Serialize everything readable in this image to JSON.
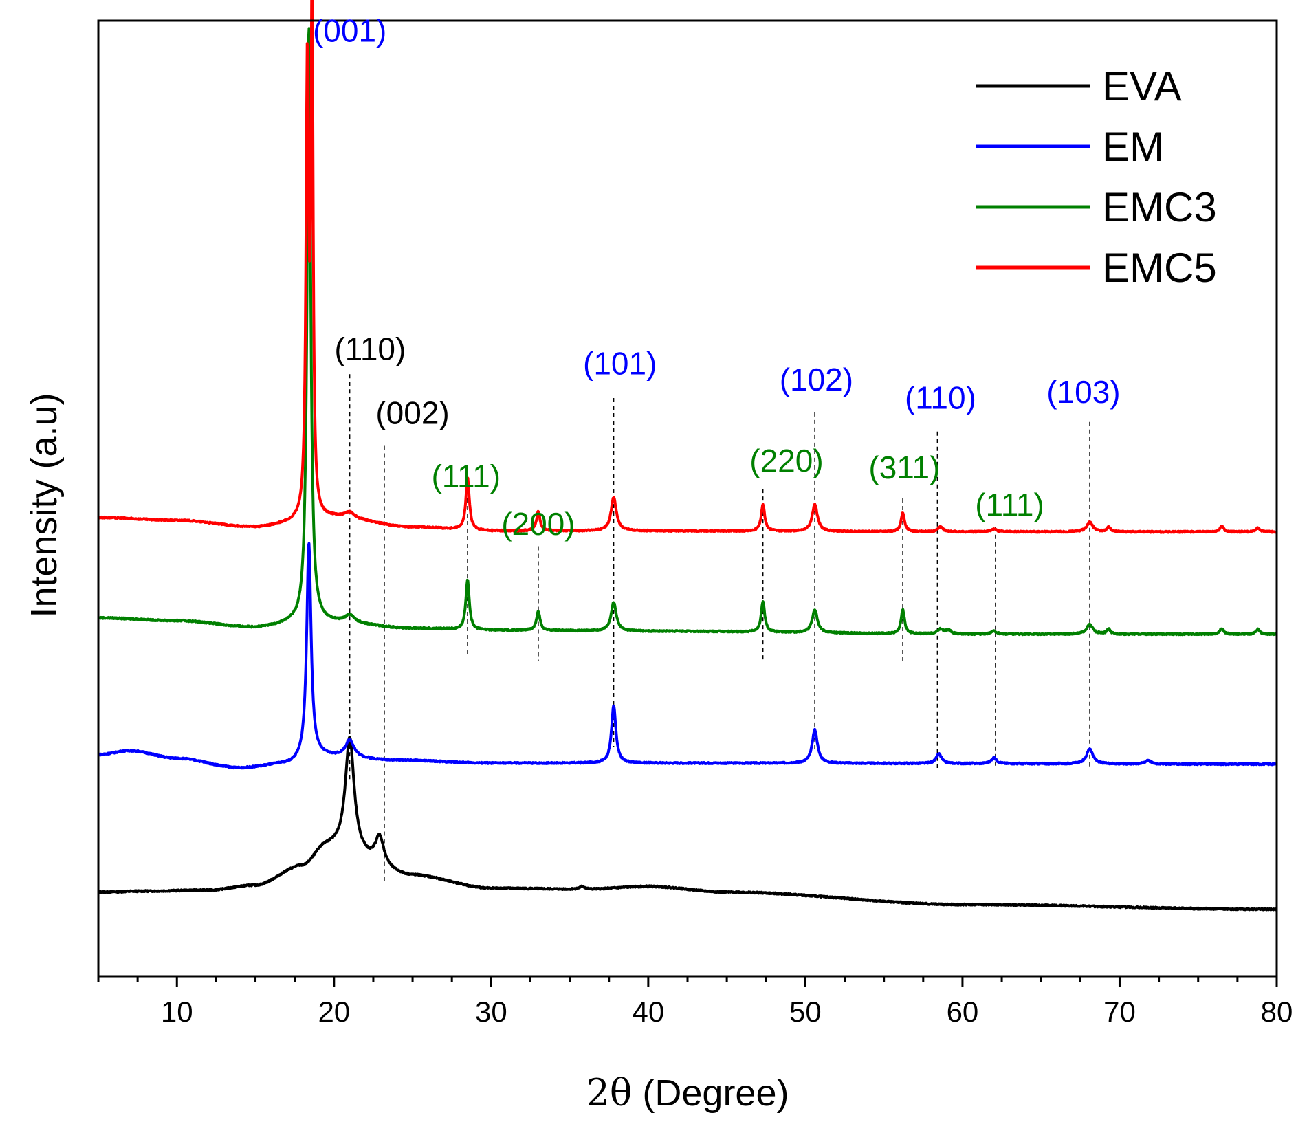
{
  "chart_data": {
    "type": "line",
    "title": "",
    "xlabel_prefix": "2θ",
    "xlabel_suffix": " (Degree)",
    "ylabel": "Intensity (a.u)",
    "xlim": [
      5,
      80
    ],
    "ylim": [
      0,
      1000
    ],
    "xticks": [
      10,
      20,
      30,
      40,
      50,
      60,
      70,
      80
    ],
    "yticks_shown": false,
    "legend_position": "top-right",
    "colors": {
      "EVA": "#000000",
      "EM": "#0000ff",
      "EMC3": "#008000",
      "EMC5": "#ff0000"
    },
    "series": [
      {
        "name": "EVA",
        "color": "#000000",
        "baseline_start": 88,
        "baseline_end": 70,
        "baseline_points": [
          [
            5,
            88
          ],
          [
            8,
            89
          ],
          [
            12,
            90
          ],
          [
            15,
            95
          ],
          [
            18,
            115
          ],
          [
            19.5,
            135
          ],
          [
            25,
            105
          ],
          [
            30,
            92
          ],
          [
            36,
            91
          ],
          [
            40,
            94
          ],
          [
            45,
            88
          ],
          [
            60,
            75
          ],
          [
            80,
            70
          ]
        ],
        "peaks": [
          [
            21.0,
            120,
            0.5
          ],
          [
            22.9,
            30,
            0.5
          ],
          [
            35.8,
            3,
            0.3
          ]
        ]
      },
      {
        "name": "EM",
        "color": "#0000ff",
        "baseline_start": 232,
        "baseline_end": 222,
        "baseline_points": [
          [
            5,
            232
          ],
          [
            7,
            236
          ],
          [
            10,
            228
          ],
          [
            14,
            218
          ],
          [
            17,
            222
          ],
          [
            19,
            230
          ],
          [
            24,
            226
          ],
          [
            30,
            223
          ],
          [
            40,
            223
          ],
          [
            80,
            222
          ]
        ],
        "peaks": [
          [
            18.4,
            225,
            0.25
          ],
          [
            21.0,
            18,
            0.5
          ],
          [
            37.8,
            60,
            0.25
          ],
          [
            50.6,
            35,
            0.3
          ],
          [
            58.5,
            10,
            0.3
          ],
          [
            62.0,
            6,
            0.3
          ],
          [
            68.1,
            16,
            0.35
          ],
          [
            71.8,
            4,
            0.3
          ]
        ]
      },
      {
        "name": "EMC3",
        "color": "#008000",
        "baseline_start": 375,
        "baseline_end": 358,
        "baseline_points": [
          [
            5,
            375
          ],
          [
            10,
            372
          ],
          [
            15,
            365
          ],
          [
            18,
            370
          ],
          [
            20,
            370
          ],
          [
            25,
            364
          ],
          [
            30,
            362
          ],
          [
            40,
            361
          ],
          [
            60,
            358
          ],
          [
            80,
            358
          ]
        ],
        "peaks": [
          [
            18.4,
            625,
            0.2
          ],
          [
            21.0,
            8,
            0.5
          ],
          [
            28.5,
            52,
            0.2
          ],
          [
            33.0,
            20,
            0.2
          ],
          [
            37.8,
            30,
            0.3
          ],
          [
            47.3,
            32,
            0.2
          ],
          [
            50.6,
            24,
            0.3
          ],
          [
            56.2,
            25,
            0.2
          ],
          [
            58.6,
            5,
            0.3
          ],
          [
            59.1,
            4,
            0.3
          ],
          [
            62.0,
            3,
            0.3
          ],
          [
            68.1,
            10,
            0.35
          ],
          [
            69.3,
            5,
            0.2
          ],
          [
            76.5,
            6,
            0.2
          ],
          [
            78.8,
            5,
            0.2
          ]
        ]
      },
      {
        "name": "EMC5",
        "color": "#ff0000",
        "baseline_start": 480,
        "baseline_end": 465,
        "baseline_points": [
          [
            5,
            480
          ],
          [
            10,
            477
          ],
          [
            15,
            470
          ],
          [
            18,
            475
          ],
          [
            20,
            480
          ],
          [
            25,
            470
          ],
          [
            30,
            466
          ],
          [
            40,
            466
          ],
          [
            60,
            465
          ],
          [
            80,
            465
          ]
        ],
        "peaks": [
          [
            18.3,
            470,
            0.15
          ],
          [
            18.6,
            545,
            0.12
          ],
          [
            21.0,
            6,
            0.5
          ],
          [
            28.5,
            55,
            0.2
          ],
          [
            33.0,
            20,
            0.2
          ],
          [
            37.8,
            35,
            0.3
          ],
          [
            47.3,
            28,
            0.2
          ],
          [
            50.6,
            28,
            0.3
          ],
          [
            56.2,
            20,
            0.2
          ],
          [
            58.6,
            5,
            0.3
          ],
          [
            62.0,
            3,
            0.3
          ],
          [
            68.1,
            10,
            0.35
          ],
          [
            69.3,
            5,
            0.2
          ],
          [
            76.5,
            6,
            0.2
          ],
          [
            78.8,
            4,
            0.2
          ]
        ]
      }
    ],
    "guide_lines": [
      {
        "x": 21.0,
        "y_top": 630,
        "y_bottom": 205
      },
      {
        "x": 23.2,
        "y_top": 555,
        "y_bottom": 100
      },
      {
        "x": 28.5,
        "y_top": 500,
        "y_bottom": 335
      },
      {
        "x": 33.0,
        "y_top": 450,
        "y_bottom": 330
      },
      {
        "x": 37.8,
        "y_top": 605,
        "y_bottom": 240
      },
      {
        "x": 47.3,
        "y_top": 510,
        "y_bottom": 330
      },
      {
        "x": 50.6,
        "y_top": 590,
        "y_bottom": 235
      },
      {
        "x": 56.2,
        "y_top": 500,
        "y_bottom": 330
      },
      {
        "x": 58.4,
        "y_top": 570,
        "y_bottom": 218
      },
      {
        "x": 62.1,
        "y_top": 470,
        "y_bottom": 218
      },
      {
        "x": 68.1,
        "y_top": 580,
        "y_bottom": 218
      }
    ],
    "annotations": [
      {
        "text": "(001)",
        "x": 21.0,
        "y": 978,
        "color": "#0000ff",
        "id": "eva-001"
      },
      {
        "text": "(110)",
        "x": 22.3,
        "y": 645,
        "color": "#000000",
        "id": "eva-110"
      },
      {
        "text": "(002)",
        "x": 25.0,
        "y": 578,
        "color": "#000000",
        "id": "eva-002"
      },
      {
        "text": "(111)",
        "x": 28.4,
        "y": 512,
        "color": "#008000",
        "id": "cu-111"
      },
      {
        "text": "(200)",
        "x": 33.0,
        "y": 462,
        "color": "#008000",
        "id": "cu-200"
      },
      {
        "text": "(101)",
        "x": 38.2,
        "y": 630,
        "color": "#0000ff",
        "id": "mg-101"
      },
      {
        "text": "(220)",
        "x": 48.8,
        "y": 528,
        "color": "#008000",
        "id": "cu-220"
      },
      {
        "text": "(102)",
        "x": 50.7,
        "y": 613,
        "color": "#0000ff",
        "id": "mg-102"
      },
      {
        "text": "(311)",
        "x": 56.3,
        "y": 521,
        "color": "#008000",
        "id": "cu-311"
      },
      {
        "text": "(110)",
        "x": 58.6,
        "y": 594,
        "color": "#0000ff",
        "id": "mg-110"
      },
      {
        "text": "(111)",
        "x": 63.0,
        "y": 482,
        "color": "#008000",
        "id": "cu2-111"
      },
      {
        "text": "(103)",
        "x": 67.7,
        "y": 600,
        "color": "#0000ff",
        "id": "mg-103"
      }
    ]
  }
}
